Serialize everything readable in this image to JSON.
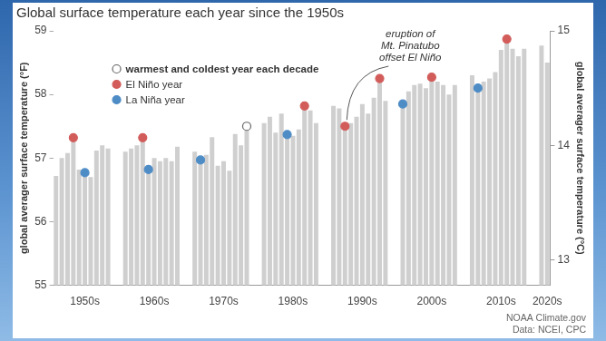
{
  "chart_data": {
    "type": "bar",
    "title": "Global surface temperature each year since the 1950s",
    "y_label": "global averager surface temperature (°F)",
    "y2_label": "global averager surface temperature (°C)",
    "categories": [
      null,
      null,
      null,
      null,
      null,
      "1950s",
      null,
      null,
      null,
      null,
      null,
      null,
      null,
      null,
      null,
      null,
      null,
      "1960s",
      null,
      null,
      null,
      null,
      null,
      null,
      null,
      null,
      null,
      null,
      null,
      "1970s",
      null,
      null,
      null,
      null,
      null,
      null,
      null,
      null,
      null,
      null,
      null,
      "1980s",
      null,
      null,
      null,
      null,
      null,
      null,
      null,
      null,
      null,
      null,
      null,
      "1990s",
      null,
      null,
      null,
      null,
      null,
      null,
      null,
      null,
      null,
      null,
      null,
      "2000s",
      null,
      null,
      null,
      null,
      null,
      null,
      null,
      null,
      null,
      null,
      null,
      "2010s",
      null,
      null,
      null,
      null,
      null,
      null,
      null,
      "2020s"
    ],
    "series": [
      {
        "type": "bar",
        "color": "#cfcfcf",
        "values": [
          56.72,
          57.0,
          57.08,
          57.32,
          56.82,
          56.77,
          56.7,
          57.12,
          57.2,
          57.15,
          null,
          null,
          57.1,
          57.15,
          57.2,
          57.32,
          56.82,
          57.0,
          56.95,
          57.0,
          56.95,
          57.18,
          null,
          null,
          57.1,
          56.97,
          57.05,
          57.33,
          56.88,
          56.95,
          56.8,
          57.38,
          57.2,
          57.5,
          null,
          null,
          57.55,
          57.65,
          57.4,
          57.7,
          57.37,
          57.35,
          57.45,
          57.82,
          57.75,
          57.55,
          null,
          null,
          57.82,
          57.78,
          57.5,
          57.55,
          57.65,
          57.85,
          57.7,
          57.95,
          58.25,
          57.9,
          null,
          null,
          57.85,
          58.05,
          58.15,
          58.17,
          58.1,
          58.27,
          58.2,
          58.15,
          58.0,
          58.15,
          null,
          null,
          58.3,
          58.1,
          58.2,
          58.25,
          58.35,
          58.7,
          58.87,
          58.72,
          58.6,
          58.72,
          null,
          null,
          58.77,
          58.5
        ]
      },
      {
        "name": "warmest and coldest year each decade",
        "type": "scatter",
        "marker": "circle",
        "color": "#ffffff",
        "values": [
          null,
          null,
          null,
          null,
          null,
          null,
          null,
          null,
          null,
          null,
          null,
          null,
          null,
          null,
          null,
          null,
          null,
          null,
          null,
          null,
          null,
          null,
          null,
          null,
          null,
          null,
          null,
          null,
          null,
          null,
          null,
          null,
          null,
          57.5,
          null,
          null,
          null,
          null,
          null,
          null,
          null,
          null,
          null,
          null,
          null,
          null,
          null,
          null,
          null,
          null,
          null,
          null,
          null,
          null,
          null,
          null,
          null,
          null,
          null,
          null,
          null,
          null,
          null,
          null,
          null,
          null,
          null,
          null,
          null,
          null,
          null,
          null,
          null,
          null,
          null,
          null,
          null,
          null,
          null,
          null,
          null,
          null,
          null,
          null,
          null,
          null
        ]
      },
      {
        "name": "El Niño year",
        "type": "scatter",
        "marker": "circle",
        "color": "#d25c5a",
        "values": [
          null,
          null,
          null,
          57.32,
          null,
          null,
          null,
          null,
          null,
          null,
          null,
          null,
          null,
          null,
          null,
          57.32,
          null,
          null,
          null,
          null,
          null,
          null,
          null,
          null,
          null,
          null,
          null,
          null,
          null,
          null,
          null,
          null,
          null,
          null,
          null,
          null,
          null,
          null,
          null,
          null,
          null,
          null,
          null,
          57.82,
          null,
          null,
          null,
          null,
          null,
          null,
          57.5,
          null,
          null,
          null,
          null,
          null,
          58.25,
          null,
          null,
          null,
          null,
          null,
          null,
          null,
          null,
          58.27,
          null,
          null,
          null,
          null,
          null,
          null,
          null,
          null,
          null,
          null,
          null,
          null,
          58.87,
          null,
          null,
          null,
          null,
          null,
          null,
          null
        ]
      },
      {
        "name": "La Niña year",
        "type": "scatter",
        "marker": "circle",
        "color": "#4e8cc6",
        "values": [
          null,
          null,
          null,
          null,
          null,
          56.77,
          null,
          null,
          null,
          null,
          null,
          null,
          null,
          null,
          null,
          null,
          56.82,
          null,
          null,
          null,
          null,
          null,
          null,
          null,
          null,
          56.97,
          null,
          null,
          null,
          null,
          null,
          null,
          null,
          null,
          null,
          null,
          null,
          null,
          null,
          null,
          57.37,
          null,
          null,
          null,
          null,
          null,
          null,
          null,
          null,
          null,
          null,
          null,
          null,
          null,
          null,
          null,
          null,
          null,
          null,
          null,
          57.85,
          null,
          null,
          null,
          null,
          null,
          null,
          null,
          null,
          null,
          null,
          null,
          null,
          58.1,
          null,
          null,
          null,
          null,
          null,
          null,
          null,
          null,
          null,
          null,
          null,
          null
        ]
      }
    ],
    "ylim": [
      55,
      59
    ],
    "yticks": [
      55,
      56,
      57,
      58,
      59
    ],
    "y2lim": [
      12.7778,
      15
    ],
    "y2ticks": [
      13,
      14,
      15
    ],
    "grid": false,
    "legend": "upper left",
    "annotations": [
      {
        "text": [
          "eruption of",
          "Mt. Pinatubo",
          "offset El Niño"
        ]
      }
    ],
    "source": [
      "NOAA Climate.gov",
      "Data: NCEI, CPC"
    ]
  }
}
